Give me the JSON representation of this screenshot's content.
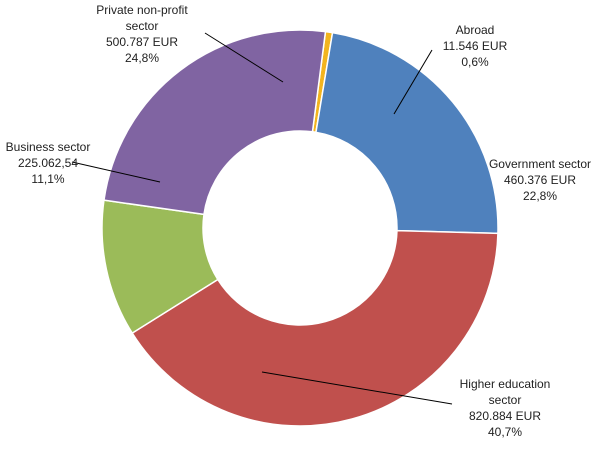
{
  "chart_data": {
    "type": "pie",
    "variant": "donut",
    "title": "",
    "slices": [
      {
        "name": "Abroad",
        "label_lines": [
          "Abroad"
        ],
        "value_text": "11.546 EUR",
        "value": 11546,
        "percent_text": "0,6%",
        "percent": 0.6,
        "color": "#F2B41E"
      },
      {
        "name": "Government sector",
        "label_lines": [
          "Government sector"
        ],
        "value_text": "460.376 EUR",
        "value": 460376,
        "percent_text": "22,8%",
        "percent": 22.8,
        "color": "#4F81BD"
      },
      {
        "name": "Higher education sector",
        "label_lines": [
          "Higher education",
          "sector"
        ],
        "value_text": "820.884 EUR",
        "value": 820884,
        "percent_text": "40,7%",
        "percent": 40.7,
        "color": "#C0504D"
      },
      {
        "name": "Business sector",
        "label_lines": [
          "Business sector"
        ],
        "value_text": "225.062,54",
        "value": 225062.54,
        "percent_text": "11,1%",
        "percent": 11.1,
        "color": "#9BBB59"
      },
      {
        "name": "Private non-profit sector",
        "label_lines": [
          "Private non-profit",
          "sector"
        ],
        "value_text": "500.787 EUR",
        "value": 500787,
        "percent_text": "24,8%",
        "percent": 24.8,
        "color": "#8064A2"
      }
    ]
  }
}
